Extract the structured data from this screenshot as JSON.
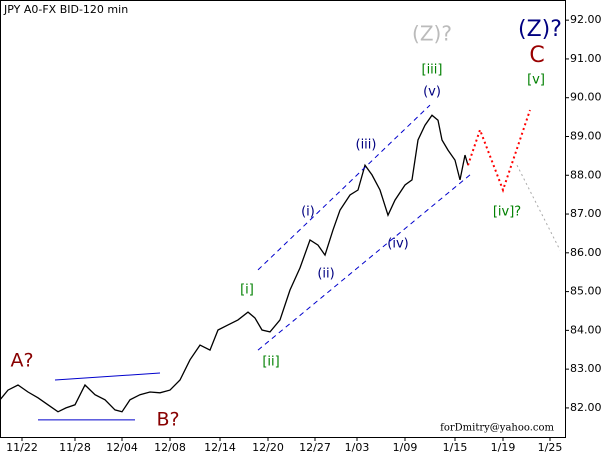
{
  "chart_data": {
    "type": "line",
    "title": "JPY A0-FX BID-120 min",
    "xlim": [
      0,
      565
    ],
    "ylim": [
      81.25,
      92.52
    ],
    "xticks": [
      {
        "value": 22,
        "label": "11/22"
      },
      {
        "value": 75,
        "label": "11/28"
      },
      {
        "value": 122,
        "label": "12/04"
      },
      {
        "value": 170,
        "label": "12/08"
      },
      {
        "value": 220,
        "label": "12/14"
      },
      {
        "value": 268,
        "label": "12/20"
      },
      {
        "value": 315,
        "label": "12/27"
      },
      {
        "value": 357,
        "label": "1/03"
      },
      {
        "value": 405,
        "label": "1/09"
      },
      {
        "value": 455,
        "label": "1/15"
      },
      {
        "value": 503,
        "label": "1/19"
      },
      {
        "value": 550,
        "label": "1/25"
      }
    ],
    "yticks": [
      {
        "value": 82,
        "label": "82.00"
      },
      {
        "value": 83,
        "label": "83.00"
      },
      {
        "value": 84,
        "label": "84.00"
      },
      {
        "value": 85,
        "label": "85.00"
      },
      {
        "value": 86,
        "label": "86.00"
      },
      {
        "value": 87,
        "label": "87.00"
      },
      {
        "value": 88,
        "label": "88.00"
      },
      {
        "value": 89,
        "label": "89.00"
      },
      {
        "value": 90,
        "label": "90.00"
      },
      {
        "value": 91,
        "label": "91.00"
      },
      {
        "value": 92,
        "label": "92.00"
      }
    ],
    "series": [
      {
        "color": "#000000",
        "style": "solid",
        "width": 1.3,
        "x": [
          0,
          8,
          18,
          28,
          38,
          48,
          58,
          66,
          75,
          85,
          95,
          105,
          115,
          122,
          130,
          140,
          150,
          160,
          170,
          180,
          190,
          200,
          210,
          218,
          228,
          238,
          248,
          255,
          262,
          270,
          280,
          290,
          300,
          310,
          318,
          325,
          333,
          340,
          350,
          358,
          365,
          372,
          380,
          388,
          395,
          405,
          412,
          418,
          425,
          432,
          438,
          442,
          448,
          455,
          460,
          465,
          468
        ],
        "values": [
          82.21,
          82.46,
          82.59,
          82.41,
          82.26,
          82.08,
          81.9,
          82.0,
          82.08,
          82.59,
          82.34,
          82.21,
          81.95,
          81.9,
          82.21,
          82.34,
          82.41,
          82.39,
          82.46,
          82.72,
          83.24,
          83.62,
          83.49,
          84.01,
          84.14,
          84.27,
          84.47,
          84.32,
          84.01,
          83.96,
          84.27,
          85.04,
          85.61,
          86.33,
          86.2,
          85.94,
          86.59,
          87.1,
          87.49,
          87.62,
          88.26,
          88.01,
          87.62,
          86.97,
          87.36,
          87.75,
          87.88,
          88.91,
          89.29,
          89.55,
          89.42,
          88.91,
          88.65,
          88.39,
          87.88,
          88.52,
          88.26
        ]
      },
      {
        "color": "#ff0000",
        "style": "dotted",
        "width": 2,
        "x": [
          468,
          480,
          503,
          530
        ],
        "values": [
          88.26,
          89.17,
          87.62,
          89.68
        ]
      },
      {
        "color": "#aaaaaa",
        "style": "dotted",
        "width": 1,
        "x": [
          517,
          560
        ],
        "values": [
          88.26,
          86.07
        ]
      },
      {
        "color": "#0000cc",
        "style": "dashed",
        "width": 1,
        "x": [
          258,
          430
        ],
        "values": [
          85.56,
          89.81
        ]
      },
      {
        "color": "#0000cc",
        "style": "dashed",
        "width": 1,
        "x": [
          258,
          470
        ],
        "values": [
          83.49,
          88.01
        ]
      },
      {
        "color": "#0000cc",
        "style": "solid",
        "width": 1,
        "x": [
          55,
          160
        ],
        "values": [
          82.72,
          82.9
        ]
      },
      {
        "color": "#0000cc",
        "style": "solid",
        "width": 1,
        "x": [
          38,
          135
        ],
        "values": [
          81.69,
          81.69
        ]
      }
    ],
    "annotations": [
      "(Z)?",
      "(Z)?",
      "C",
      "[iii]",
      "[v]",
      "(v)",
      "(iii)",
      "(i)",
      "(ii)",
      "(iv)",
      "[i]",
      "[ii]",
      "[iv]?",
      "A?",
      "B?",
      "forDmitry@yahoo.com"
    ]
  }
}
